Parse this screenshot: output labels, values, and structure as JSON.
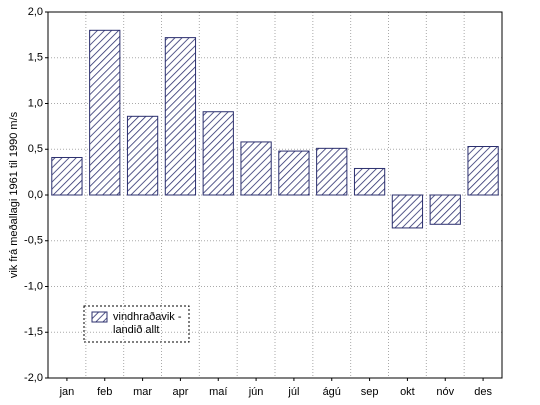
{
  "chart_data": {
    "type": "bar",
    "ylabel": "vik frá meðallagi 1961 til 1990 m/s",
    "categories": [
      "jan",
      "feb",
      "mar",
      "apr",
      "maí",
      "jún",
      "júl",
      "ágú",
      "sep",
      "okt",
      "nóv",
      "des"
    ],
    "series": [
      {
        "name": "vindhraðavik - landið allt",
        "color": "#2b2f6e",
        "values": [
          0.41,
          1.8,
          0.86,
          1.72,
          0.91,
          0.58,
          0.48,
          0.51,
          0.29,
          -0.36,
          -0.32,
          0.53
        ]
      }
    ],
    "ylim": [
      -2,
      2
    ],
    "yticks": [
      {
        "value": -2,
        "label": "-2,0"
      },
      {
        "value": -1.5,
        "label": "-1,5"
      },
      {
        "value": -1,
        "label": "-1,0"
      },
      {
        "value": -0.5,
        "label": "-0,5"
      },
      {
        "value": 0,
        "label": "0,0"
      },
      {
        "value": 0.5,
        "label": "0,5"
      },
      {
        "value": 1,
        "label": "1,0"
      },
      {
        "value": 1.5,
        "label": "1,5"
      },
      {
        "value": 2,
        "label": "2,0"
      }
    ],
    "grid": true
  }
}
